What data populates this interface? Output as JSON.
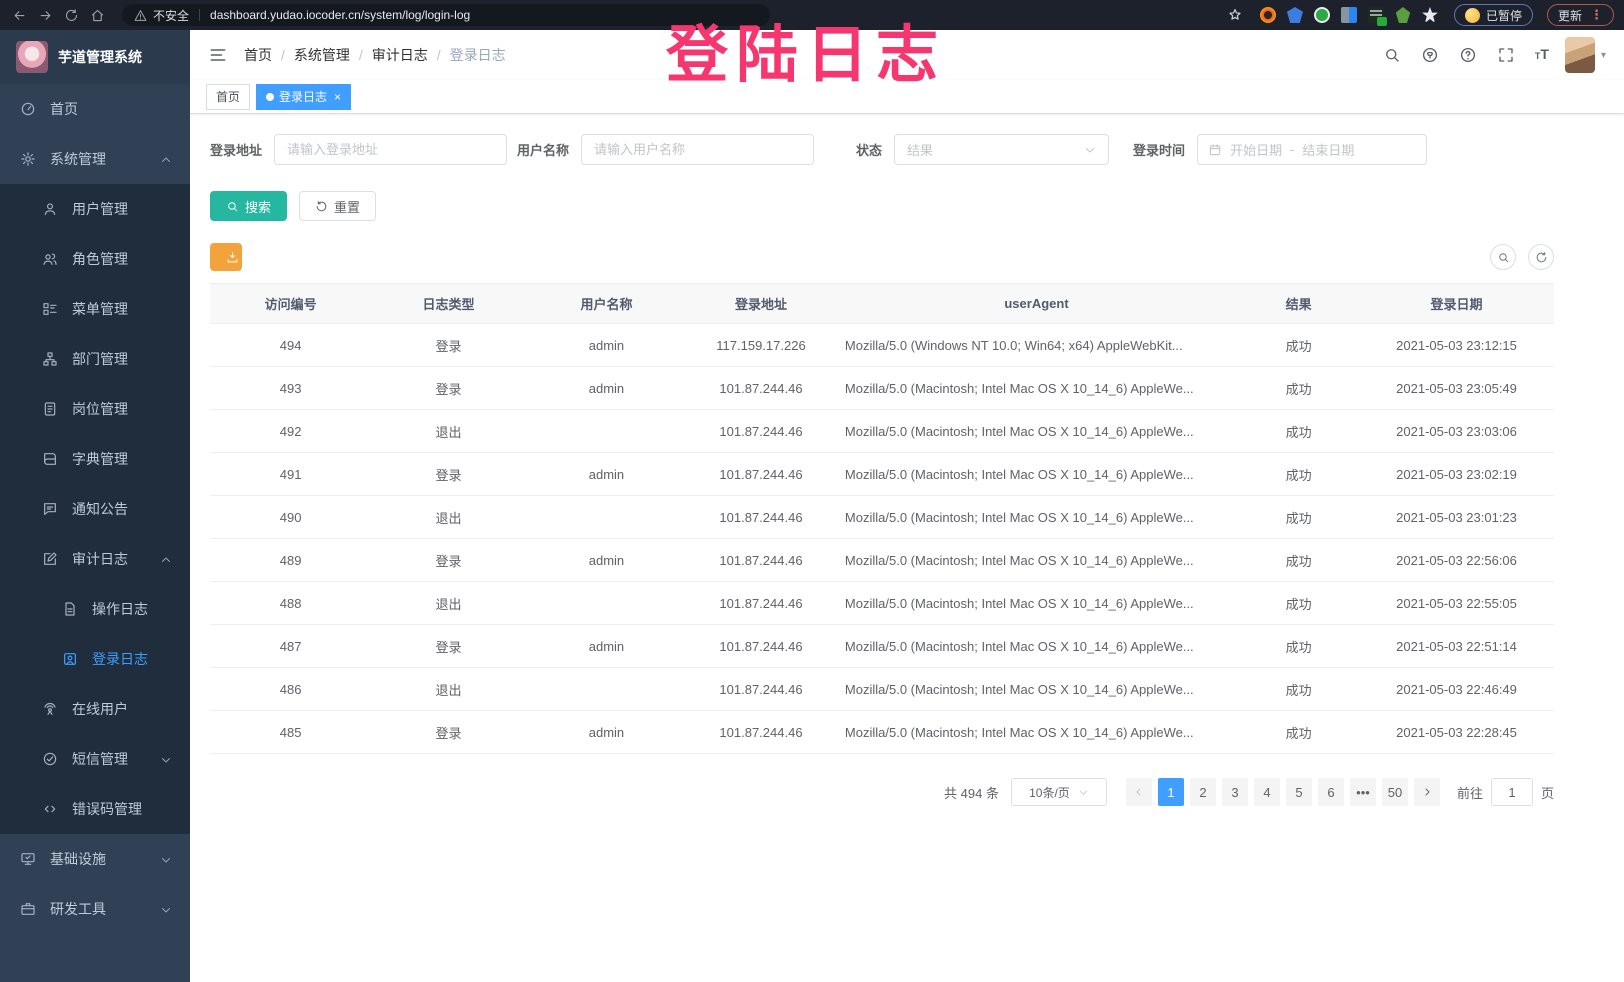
{
  "watermark": "登陆日志",
  "colors": {
    "accent": "#409EFF",
    "teal": "#26B7A0",
    "warning": "#F2A33C",
    "sidebar": "#304156",
    "submenu": "#1F2D3D",
    "watermark_pink": "#F5366F"
  },
  "browser": {
    "nav_icons": [
      "back-icon",
      "forward-icon",
      "reload-icon",
      "home-icon"
    ],
    "security_label": "不安全",
    "url": "dashboard.yudao.iocoder.cn/system/log/login-log",
    "bookmark_icon": "star-icon",
    "extension_icons": [
      "firefox-ext-icon",
      "shield-ext-icon",
      "green-circle-ext-icon",
      "grid-ext-icon",
      "list-on-ext-icon",
      "leaf-ext-icon",
      "puzzle-ext-icon"
    ],
    "paused_badge": "已暂停",
    "update_button": "更新",
    "menu_icon": "kebab-menu-icon"
  },
  "sidebar": {
    "app_title": "芋道管理系统",
    "items": [
      {
        "key": "home",
        "label": "首页",
        "icon": "dashboard-icon",
        "level": 0
      },
      {
        "key": "system",
        "label": "系统管理",
        "icon": "gear-icon",
        "level": 0,
        "arrow": "up"
      },
      {
        "key": "user",
        "label": "用户管理",
        "icon": "user-icon",
        "level": 1
      },
      {
        "key": "role",
        "label": "角色管理",
        "icon": "users-icon",
        "level": 1
      },
      {
        "key": "menu",
        "label": "菜单管理",
        "icon": "menu-tree-icon",
        "level": 1
      },
      {
        "key": "dept",
        "label": "部门管理",
        "icon": "org-tree-icon",
        "level": 1
      },
      {
        "key": "post",
        "label": "岗位管理",
        "icon": "badge-icon",
        "level": 1
      },
      {
        "key": "dict",
        "label": "字典管理",
        "icon": "book-icon",
        "level": 1
      },
      {
        "key": "notice",
        "label": "通知公告",
        "icon": "megaphone-icon",
        "level": 1
      },
      {
        "key": "audit",
        "label": "审计日志",
        "icon": "edit-square-icon",
        "level": 1,
        "arrow": "up"
      },
      {
        "key": "operate-log",
        "label": "操作日志",
        "icon": "document-icon",
        "level": 2
      },
      {
        "key": "login-log",
        "label": "登录日志",
        "icon": "login-log-icon",
        "level": 2,
        "active": true
      },
      {
        "key": "online",
        "label": "在线用户",
        "icon": "online-user-icon",
        "level": 1
      },
      {
        "key": "sms",
        "label": "短信管理",
        "icon": "sms-icon",
        "level": 1,
        "arrow": "down"
      },
      {
        "key": "errcode",
        "label": "错误码管理",
        "icon": "code-icon",
        "level": 1
      },
      {
        "key": "infra",
        "label": "基础设施",
        "icon": "infra-icon",
        "level": 0,
        "arrow": "down"
      },
      {
        "key": "tools",
        "label": "研发工具",
        "icon": "tools-icon",
        "level": 0,
        "arrow": "down"
      }
    ]
  },
  "header": {
    "hamburger_icon": "hamburger-icon",
    "breadcrumb": [
      "首页",
      "系统管理",
      "审计日志",
      "登录日志"
    ],
    "icons": [
      "search-icon",
      "github-icon",
      "question-icon",
      "fullscreen-icon",
      "font-size-icon"
    ],
    "avatar_icon": "user-avatar",
    "caret_icon": "caret-down-icon"
  },
  "tags": [
    {
      "label": "首页",
      "active": false
    },
    {
      "label": "登录日志",
      "active": true
    }
  ],
  "filters": {
    "login_address": {
      "label": "登录地址",
      "placeholder": "请输入登录地址"
    },
    "username": {
      "label": "用户名称",
      "placeholder": "请输入用户名称"
    },
    "status": {
      "label": "状态",
      "placeholder": "结果"
    },
    "login_time": {
      "label": "登录时间",
      "start_placeholder": "开始日期",
      "separator": "-",
      "end_placeholder": "结束日期"
    }
  },
  "actions": {
    "search": "搜索",
    "reset": "重置",
    "export": "导出"
  },
  "table": {
    "columns": [
      "访问编号",
      "日志类型",
      "用户名称",
      "登录地址",
      "userAgent",
      "结果",
      "登录日期"
    ],
    "rows": [
      [
        "494",
        "登录",
        "admin",
        "117.159.17.226",
        "Mozilla/5.0 (Windows NT 10.0; Win64; x64) AppleWebKit...",
        "成功",
        "2021-05-03 23:12:15"
      ],
      [
        "493",
        "登录",
        "admin",
        "101.87.244.46",
        "Mozilla/5.0 (Macintosh; Intel Mac OS X 10_14_6) AppleWe...",
        "成功",
        "2021-05-03 23:05:49"
      ],
      [
        "492",
        "退出",
        "",
        "101.87.244.46",
        "Mozilla/5.0 (Macintosh; Intel Mac OS X 10_14_6) AppleWe...",
        "成功",
        "2021-05-03 23:03:06"
      ],
      [
        "491",
        "登录",
        "admin",
        "101.87.244.46",
        "Mozilla/5.0 (Macintosh; Intel Mac OS X 10_14_6) AppleWe...",
        "成功",
        "2021-05-03 23:02:19"
      ],
      [
        "490",
        "退出",
        "",
        "101.87.244.46",
        "Mozilla/5.0 (Macintosh; Intel Mac OS X 10_14_6) AppleWe...",
        "成功",
        "2021-05-03 23:01:23"
      ],
      [
        "489",
        "登录",
        "admin",
        "101.87.244.46",
        "Mozilla/5.0 (Macintosh; Intel Mac OS X 10_14_6) AppleWe...",
        "成功",
        "2021-05-03 22:56:06"
      ],
      [
        "488",
        "退出",
        "",
        "101.87.244.46",
        "Mozilla/5.0 (Macintosh; Intel Mac OS X 10_14_6) AppleWe...",
        "成功",
        "2021-05-03 22:55:05"
      ],
      [
        "487",
        "登录",
        "admin",
        "101.87.244.46",
        "Mozilla/5.0 (Macintosh; Intel Mac OS X 10_14_6) AppleWe...",
        "成功",
        "2021-05-03 22:51:14"
      ],
      [
        "486",
        "退出",
        "",
        "101.87.244.46",
        "Mozilla/5.0 (Macintosh; Intel Mac OS X 10_14_6) AppleWe...",
        "成功",
        "2021-05-03 22:46:49"
      ],
      [
        "485",
        "登录",
        "admin",
        "101.87.244.46",
        "Mozilla/5.0 (Macintosh; Intel Mac OS X 10_14_6) AppleWe...",
        "成功",
        "2021-05-03 22:28:45"
      ]
    ]
  },
  "pagination": {
    "total_label": "共 494 条",
    "page_size": "10条/页",
    "pages": [
      "1",
      "2",
      "3",
      "4",
      "5",
      "6",
      "•••",
      "50"
    ],
    "active_page": "1",
    "goto_label": "前往",
    "goto_value": "1",
    "goto_unit": "页"
  }
}
